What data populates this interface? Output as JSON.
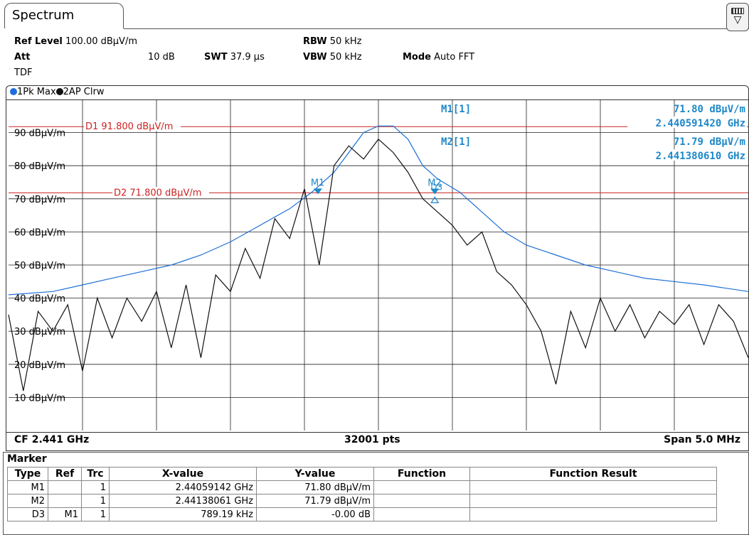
{
  "tab": {
    "title": "Spectrum"
  },
  "settings": {
    "ref_level_label": "Ref Level",
    "ref_level_value": "100.00 dBµV/m",
    "att_label": "Att",
    "att_value": "10 dB",
    "swt_label": "SWT",
    "swt_value": "37.9 µs",
    "rbw_label": "RBW",
    "rbw_value": "50 kHz",
    "vbw_label": "VBW",
    "vbw_value": "50 kHz",
    "mode_label": "Mode",
    "mode_value": "Auto FFT",
    "tdf": "TDF"
  },
  "traces": [
    {
      "label": "1Pk Max",
      "color": "#1e6fd9"
    },
    {
      "label": "2AP Clrw",
      "color": "#111111"
    }
  ],
  "chart_data": {
    "type": "line",
    "y_tick_labels": [
      "90 dBµV/m",
      "80 dBµV/m",
      "70 dBµV/m",
      "60 dBµV/m",
      "50 dBµV/m",
      "40 dBµV/m",
      "30 dBµV/m",
      "20 dBµV/m",
      "10 dBµV/m"
    ],
    "y_ticks": [
      90,
      80,
      70,
      60,
      50,
      40,
      30,
      20,
      10
    ],
    "ylim": [
      0,
      100
    ],
    "xlim_mhz": [
      2438.5,
      2443.5
    ],
    "grid": true,
    "display_lines": [
      {
        "label": "D1",
        "value": "91.800 dBµV/m",
        "level": 91.8,
        "color": "#cc2222"
      },
      {
        "label": "D2",
        "value": "71.800 dBµV/m",
        "level": 71.8,
        "color": "#cc2222"
      }
    ],
    "series": [
      {
        "name": "1Pk Max",
        "color": "#1e6fd9",
        "x_mhz": [
          2438.5,
          2438.8,
          2439.0,
          2439.2,
          2439.4,
          2439.6,
          2439.8,
          2440.0,
          2440.2,
          2440.4,
          2440.55,
          2440.7,
          2440.8,
          2440.9,
          2441.0,
          2441.1,
          2441.2,
          2441.3,
          2441.4,
          2441.55,
          2441.7,
          2441.85,
          2442.0,
          2442.2,
          2442.4,
          2442.6,
          2442.8,
          2443.0,
          2443.2,
          2443.5
        ],
        "y": [
          41,
          42,
          44,
          46,
          48,
          50,
          53,
          57,
          62,
          67,
          72,
          78,
          84,
          90,
          92,
          92,
          88,
          80,
          76,
          72,
          66,
          60,
          56,
          53,
          50,
          48,
          46,
          45,
          44,
          42
        ]
      },
      {
        "name": "2AP Clrw",
        "color": "#111111",
        "x_mhz": [
          2438.5,
          2438.6,
          2438.7,
          2438.8,
          2438.9,
          2439.0,
          2439.1,
          2439.2,
          2439.3,
          2439.4,
          2439.5,
          2439.6,
          2439.7,
          2439.8,
          2439.9,
          2440.0,
          2440.1,
          2440.2,
          2440.3,
          2440.4,
          2440.5,
          2440.6,
          2440.7,
          2440.8,
          2440.9,
          2441.0,
          2441.1,
          2441.2,
          2441.3,
          2441.4,
          2441.5,
          2441.6,
          2441.7,
          2441.8,
          2441.9,
          2442.0,
          2442.1,
          2442.2,
          2442.3,
          2442.4,
          2442.5,
          2442.6,
          2442.7,
          2442.8,
          2442.9,
          2443.0,
          2443.1,
          2443.2,
          2443.3,
          2443.4,
          2443.5
        ],
        "y": [
          35,
          12,
          36,
          30,
          38,
          18,
          40,
          28,
          40,
          33,
          42,
          25,
          44,
          22,
          47,
          42,
          55,
          46,
          64,
          58,
          73,
          50,
          80,
          86,
          82,
          88,
          84,
          78,
          70,
          66,
          62,
          56,
          60,
          48,
          44,
          38,
          30,
          14,
          36,
          25,
          40,
          30,
          38,
          28,
          36,
          32,
          38,
          26,
          38,
          33,
          22
        ]
      }
    ]
  },
  "plot_markers": [
    {
      "label": "M1",
      "x_mhz": 2440.591,
      "y": 71.8
    },
    {
      "label": "M2",
      "x_mhz": 2441.381,
      "y": 71.79
    },
    {
      "label": "D3",
      "x_mhz": 2441.381,
      "y": 71.8
    }
  ],
  "marker_readout": [
    {
      "name": "M1[1]",
      "level": "71.80 dBµV/m",
      "freq": "2.440591420 GHz"
    },
    {
      "name": "M2[1]",
      "level": "71.79 dBµV/m",
      "freq": "2.441380610 GHz"
    }
  ],
  "footer": {
    "cf": "CF 2.441 GHz",
    "pts": "32001 pts",
    "span": "Span 5.0 MHz"
  },
  "marker_table": {
    "title": "Marker",
    "headers": [
      "Type",
      "Ref",
      "Trc",
      "X-value",
      "Y-value",
      "Function",
      "Function Result"
    ],
    "rows": [
      [
        "M1",
        "",
        "1",
        "2.44059142 GHz",
        "71.80 dBµV/m",
        "",
        ""
      ],
      [
        "M2",
        "",
        "1",
        "2.44138061 GHz",
        "71.79 dBµV/m",
        "",
        ""
      ],
      [
        "D3",
        "M1",
        "1",
        "789.19 kHz",
        "-0.00 dB",
        "",
        ""
      ]
    ]
  }
}
